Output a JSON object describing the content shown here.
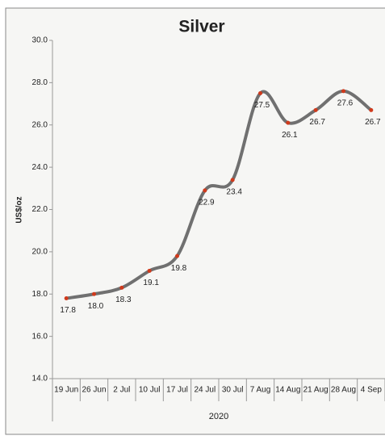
{
  "chart_data": {
    "type": "line",
    "title": "Silver",
    "y_label": "US$/oz",
    "x_label": "2020",
    "categories": [
      "19 Jun",
      "26 Jun",
      "2 Jul",
      "10 Jul",
      "17 Jul",
      "24 Jul",
      "30 Jul",
      "7 Aug",
      "14 Aug",
      "21 Aug",
      "28 Aug",
      "4 Sep"
    ],
    "series": [
      {
        "name": "Silver",
        "color": "#707070",
        "marker_color": "#d03a1c",
        "values": [
          17.8,
          18.0,
          18.3,
          19.1,
          19.8,
          22.9,
          23.4,
          27.5,
          26.1,
          26.7,
          27.6,
          26.7
        ],
        "value_labels": [
          "17.8",
          "18.0",
          "18.3",
          "19.1",
          "19.8",
          "22.9",
          "23.4",
          "27.5",
          "26.1",
          "26.7",
          "27.6",
          "26.7"
        ]
      }
    ],
    "ylim": [
      14,
      30
    ],
    "yticks": [
      {
        "value": 14,
        "label": "14.0"
      },
      {
        "value": 16,
        "label": "16.0"
      },
      {
        "value": 18,
        "label": "18.0"
      },
      {
        "value": 20,
        "label": "20.0"
      },
      {
        "value": 22,
        "label": "22.0"
      },
      {
        "value": 24,
        "label": "24.0"
      },
      {
        "value": 26,
        "label": "26.0"
      },
      {
        "value": 28,
        "label": "28.0"
      },
      {
        "value": 30,
        "label": "30.0"
      }
    ],
    "smooth": true
  }
}
